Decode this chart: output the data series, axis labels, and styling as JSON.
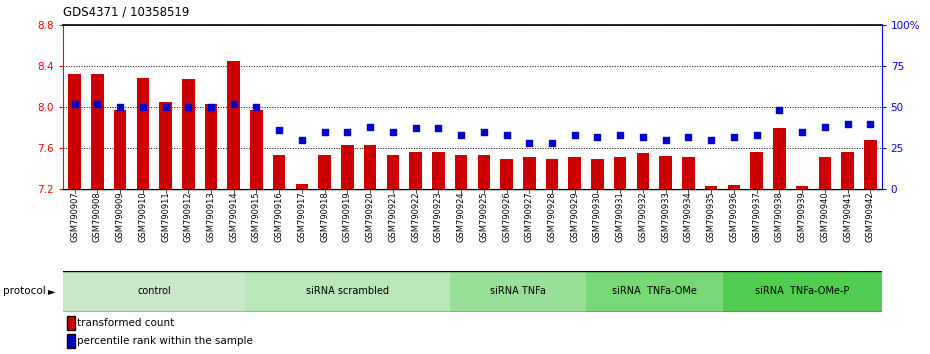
{
  "title": "GDS4371 / 10358519",
  "samples": [
    "GSM790907",
    "GSM790908",
    "GSM790909",
    "GSM790910",
    "GSM790911",
    "GSM790912",
    "GSM790913",
    "GSM790914",
    "GSM790915",
    "GSM790916",
    "GSM790917",
    "GSM790918",
    "GSM790919",
    "GSM790920",
    "GSM790921",
    "GSM790922",
    "GSM790923",
    "GSM790924",
    "GSM790925",
    "GSM790926",
    "GSM790927",
    "GSM790928",
    "GSM790929",
    "GSM790930",
    "GSM790931",
    "GSM790932",
    "GSM790933",
    "GSM790934",
    "GSM790935",
    "GSM790936",
    "GSM790937",
    "GSM790938",
    "GSM790939",
    "GSM790940",
    "GSM790941",
    "GSM790942"
  ],
  "red_bars": [
    8.32,
    8.32,
    7.97,
    8.28,
    8.05,
    8.27,
    8.03,
    8.45,
    7.97,
    7.53,
    7.25,
    7.53,
    7.63,
    7.63,
    7.53,
    7.56,
    7.56,
    7.53,
    7.53,
    7.5,
    7.51,
    7.5,
    7.51,
    7.5,
    7.51,
    7.55,
    7.52,
    7.51,
    7.23,
    7.24,
    7.56,
    7.8,
    7.23,
    7.51,
    7.56,
    7.68
  ],
  "blue_squares": [
    52,
    52,
    50,
    50,
    50,
    50,
    50,
    52,
    50,
    36,
    30,
    35,
    35,
    38,
    35,
    37,
    37,
    33,
    35,
    33,
    28,
    28,
    33,
    32,
    33,
    32,
    30,
    32,
    30,
    32,
    33,
    48,
    35,
    38,
    40,
    40
  ],
  "ylim_left": [
    7.2,
    8.8
  ],
  "ylim_right": [
    0,
    100
  ],
  "yticks_left": [
    7.2,
    7.6,
    8.0,
    8.4,
    8.8
  ],
  "yticks_right": [
    0,
    25,
    50,
    75,
    100
  ],
  "ytick_labels_right": [
    "0",
    "25",
    "50",
    "75",
    "100%"
  ],
  "groups": [
    {
      "label": "control",
      "start": 0,
      "end": 8,
      "color": "#c8e8c8"
    },
    {
      "label": "siRNA scrambled",
      "start": 8,
      "end": 17,
      "color": "#b8e8b8"
    },
    {
      "label": "siRNA TNFa",
      "start": 17,
      "end": 23,
      "color": "#98e098"
    },
    {
      "label": "siRNA  TNFa-OMe",
      "start": 23,
      "end": 29,
      "color": "#78d878"
    },
    {
      "label": "siRNA  TNFa-OMe-P",
      "start": 29,
      "end": 36,
      "color": "#50cc50"
    }
  ],
  "bar_color": "#cc0000",
  "square_color": "#0000cc",
  "plot_bg": "#ffffff",
  "tick_bg": "#d0d0d0",
  "protocol_label": "protocol"
}
